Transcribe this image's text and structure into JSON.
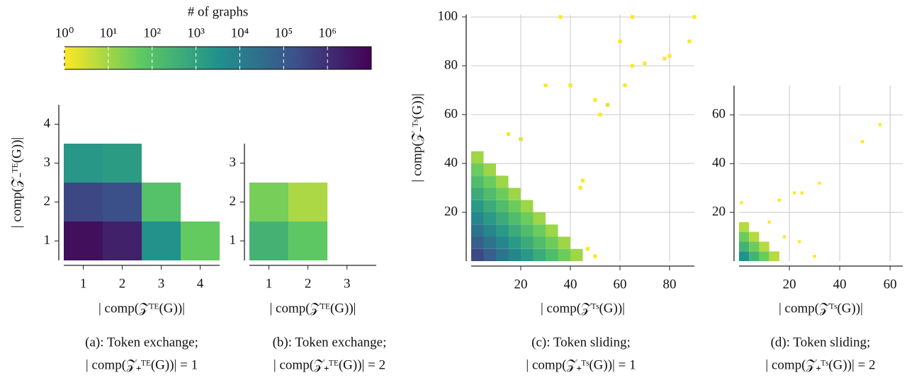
{
  "chart_data": [
    {
      "type": "colorbar",
      "title": "# of graphs",
      "xlim": [
        1,
        10000000
      ],
      "log": true,
      "colormap": [
        "#fde725",
        "#5ec962",
        "#21918c",
        "#3b528b",
        "#440154"
      ],
      "xticks": [
        {
          "value": 1,
          "label": "10⁰"
        },
        {
          "value": 10,
          "label": "10¹"
        },
        {
          "value": 100,
          "label": "10²"
        },
        {
          "value": 1000,
          "label": "10³"
        },
        {
          "value": 10000,
          "label": "10⁴"
        },
        {
          "value": 100000,
          "label": "10⁵"
        },
        {
          "value": 1000000,
          "label": "10⁶"
        }
      ]
    },
    {
      "type": "heatmap",
      "xlabel": "| comp(𝒵ᵀᴱ(G))|",
      "ylabel": "| comp(𝒵₋ᵀᴱ(G))|",
      "caption": [
        "(a):  Token exchange;",
        "| comp(𝒵₊ᵀᴱ(G))| = 1"
      ],
      "x": [
        1,
        2,
        3,
        4,
        1,
        2,
        3,
        1,
        2
      ],
      "y": [
        1,
        1,
        1,
        1,
        2,
        2,
        2,
        3,
        3
      ],
      "values": [
        5000000,
        2000000,
        3000,
        50,
        300000,
        200000,
        100,
        2000,
        1500
      ],
      "xlim": [
        0.5,
        4.5
      ],
      "ylim": [
        0.5,
        4.5
      ],
      "xticks": [
        1,
        2,
        3,
        4
      ],
      "yticks": [
        1,
        2,
        3,
        4
      ],
      "grid": false
    },
    {
      "type": "heatmap",
      "xlabel": "| comp(𝒵ᵀᴱ(G))|",
      "caption": [
        "(b):  Token exchange;",
        "| comp(𝒵₊ᵀᴱ(G))| = 2"
      ],
      "x": [
        1,
        2,
        1,
        2
      ],
      "y": [
        1,
        1,
        2,
        2
      ],
      "values": [
        300,
        60,
        30,
        8
      ],
      "xlim": [
        0.5,
        3.75
      ],
      "ylim": [
        0.5,
        3.5
      ],
      "xticks": [
        1,
        2,
        3
      ],
      "yticks": [
        1,
        2,
        3
      ],
      "grid": false
    },
    {
      "type": "heatmap",
      "xlabel": "| comp(𝒵ᵀˢ(G))|",
      "ylabel": "| comp(𝒵₋ᵀˢ(G))|",
      "caption": [
        "(c):  Token sliding;",
        "| comp(𝒵₊ᵀˢ(G))| = 1"
      ],
      "x": [
        2.5,
        2.5,
        2.5,
        2.5,
        2.5,
        2.5,
        2.5,
        2.5,
        2.5,
        7.5,
        7.5,
        7.5,
        7.5,
        7.5,
        7.5,
        7.5,
        7.5,
        12.5,
        12.5,
        12.5,
        12.5,
        12.5,
        12.5,
        12.5,
        17.5,
        17.5,
        17.5,
        17.5,
        17.5,
        17.5,
        22.5,
        22.5,
        22.5,
        22.5,
        22.5,
        27.5,
        27.5,
        27.5,
        27.5,
        32.5,
        32.5,
        32.5,
        37.5,
        37.5,
        42.5,
        47,
        50,
        44,
        45,
        52,
        55,
        62,
        65,
        70,
        78,
        80,
        36,
        65,
        90,
        88,
        60,
        40,
        50,
        30,
        20,
        15
      ],
      "y": [
        2.5,
        7.5,
        12.5,
        17.5,
        22.5,
        27.5,
        32.5,
        37.5,
        42.5,
        2.5,
        7.5,
        12.5,
        17.5,
        22.5,
        27.5,
        32.5,
        37.5,
        2.5,
        7.5,
        12.5,
        17.5,
        22.5,
        27.5,
        32.5,
        2.5,
        7.5,
        12.5,
        17.5,
        22.5,
        27.5,
        2.5,
        7.5,
        12.5,
        17.5,
        22.5,
        2.5,
        7.5,
        12.5,
        17.5,
        2.5,
        7.5,
        12.5,
        2.5,
        7.5,
        2.5,
        5,
        2,
        30,
        33,
        60,
        64,
        72,
        80,
        81,
        83,
        84,
        100,
        100,
        100,
        90,
        90,
        72,
        66,
        72,
        50,
        52
      ],
      "values": [
        280000,
        79000,
        22000,
        6300,
        1800,
        500,
        140,
        40,
        11,
        79000,
        22000,
        6300,
        1800,
        500,
        140,
        40,
        11,
        22000,
        6300,
        1800,
        500,
        140,
        40,
        11,
        6300,
        1800,
        500,
        140,
        40,
        11,
        1800,
        500,
        140,
        40,
        11,
        500,
        140,
        40,
        11,
        140,
        40,
        11,
        40,
        11,
        11,
        1,
        1,
        1,
        1,
        1,
        2,
        1,
        1,
        1,
        1,
        1,
        1,
        1,
        1,
        1,
        1,
        1,
        1,
        1,
        2,
        1
      ],
      "xlim": [
        0,
        90
      ],
      "ylim": [
        0,
        101
      ],
      "xticks": [
        20,
        40,
        60,
        80
      ],
      "yticks": [
        20,
        40,
        60,
        80,
        100
      ],
      "grid": true
    },
    {
      "type": "heatmap",
      "xlabel": "| comp(𝒵ᵀˢ(G))|",
      "caption": [
        "(d):  Token sliding;",
        "| comp(𝒵₊ᵀˢ(G))| = 2"
      ],
      "x": [
        2,
        2,
        2,
        2,
        6,
        6,
        6,
        10,
        10,
        14,
        1,
        16,
        22,
        25,
        32,
        49,
        56,
        12,
        18,
        30,
        24
      ],
      "y": [
        2,
        6,
        10,
        14,
        2,
        6,
        10,
        2,
        6,
        2,
        24,
        25,
        28,
        28,
        32,
        49,
        56,
        16,
        10,
        2,
        8
      ],
      "values": [
        3000,
        300,
        40,
        6,
        300,
        40,
        6,
        40,
        6,
        6,
        1,
        1,
        1,
        1,
        1,
        1,
        1,
        1,
        1,
        1,
        1
      ],
      "xlim": [
        0,
        65
      ],
      "ylim": [
        0,
        72
      ],
      "xticks": [
        20,
        40,
        60
      ],
      "yticks": [
        20,
        40,
        60
      ],
      "grid": true
    }
  ]
}
